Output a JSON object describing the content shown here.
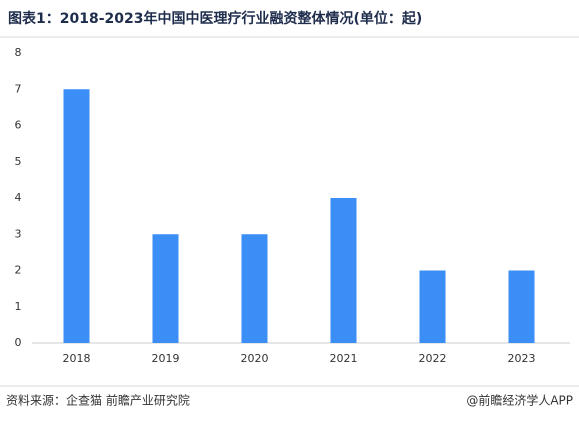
{
  "chart_data": {
    "type": "bar",
    "title": "图表1：2018-2023年中国中医理疗行业融资整体情况(单位：起)",
    "categories": [
      "2018",
      "2019",
      "2020",
      "2021",
      "2022",
      "2023"
    ],
    "values": [
      7,
      3,
      3,
      4,
      2,
      2
    ],
    "color": "#3a8ef5",
    "ylim": [
      0,
      8
    ],
    "yticks": [
      0,
      1,
      2,
      3,
      4,
      5,
      6,
      7,
      8
    ],
    "grid": false,
    "source": "资料来源：企查猫 前瞻产业研究院",
    "credit": "@前瞻经济学人APP"
  }
}
